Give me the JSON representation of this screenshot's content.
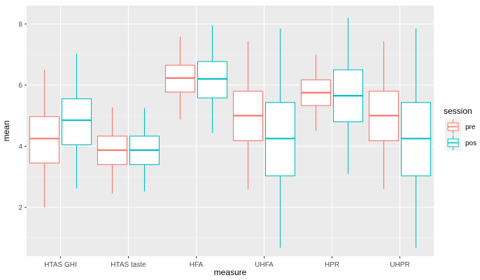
{
  "chart_data": {
    "type": "boxplot",
    "xlabel": "measure",
    "ylabel": "mean",
    "categories": [
      "HTAS GHI",
      "HTAS taste",
      "HFA",
      "UHFA",
      "HPR",
      "UHPR"
    ],
    "ylim": [
      0.4,
      8.6
    ],
    "yticks": [
      2,
      4,
      6,
      8
    ],
    "grid": true,
    "legend": {
      "title": "session",
      "position": "right"
    },
    "series": [
      {
        "name": "pre",
        "color": "#F8766D",
        "boxes": [
          {
            "min": 2.0,
            "q1": 3.45,
            "median": 4.25,
            "q3": 4.97,
            "max": 6.5
          },
          {
            "min": 2.45,
            "q1": 3.4,
            "median": 3.87,
            "q3": 4.33,
            "max": 5.27
          },
          {
            "min": 4.88,
            "q1": 5.77,
            "median": 6.23,
            "q3": 6.65,
            "max": 7.58
          },
          {
            "min": 2.6,
            "q1": 4.18,
            "median": 5.0,
            "q3": 5.8,
            "max": 7.43
          },
          {
            "min": 4.5,
            "q1": 5.33,
            "median": 5.75,
            "q3": 6.17,
            "max": 7.0
          },
          {
            "min": 2.6,
            "q1": 4.18,
            "median": 5.0,
            "q3": 5.8,
            "max": 7.43
          }
        ]
      },
      {
        "name": "pos",
        "color": "#00BFC4",
        "boxes": [
          {
            "min": 2.62,
            "q1": 4.05,
            "median": 4.85,
            "q3": 5.55,
            "max": 7.03
          },
          {
            "min": 2.52,
            "q1": 3.4,
            "median": 3.87,
            "q3": 4.33,
            "max": 5.25
          },
          {
            "min": 4.43,
            "q1": 5.58,
            "median": 6.2,
            "q3": 6.77,
            "max": 7.95
          },
          {
            "min": 0.68,
            "q1": 3.03,
            "median": 4.25,
            "q3": 5.43,
            "max": 7.85
          },
          {
            "min": 3.1,
            "q1": 4.8,
            "median": 5.65,
            "q3": 6.5,
            "max": 8.2
          },
          {
            "min": 0.68,
            "q1": 3.03,
            "median": 4.25,
            "q3": 5.43,
            "max": 7.85
          }
        ]
      }
    ]
  }
}
